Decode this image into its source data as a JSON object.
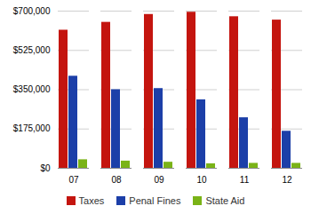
{
  "chart_data": {
    "type": "bar",
    "categories": [
      "07",
      "08",
      "09",
      "10",
      "11",
      "12"
    ],
    "series": [
      {
        "name": "Taxes",
        "color": "#c4150f",
        "values": [
          615000,
          650000,
          685000,
          695000,
          675000,
          660000
        ]
      },
      {
        "name": "Penal Fines",
        "color": "#1c3fa8",
        "values": [
          410000,
          350000,
          355000,
          305000,
          225000,
          165000
        ]
      },
      {
        "name": "State Aid",
        "color": "#7ab317",
        "values": [
          38000,
          32000,
          27000,
          20000,
          22000,
          22000
        ]
      }
    ],
    "ylim": [
      0,
      700000
    ],
    "yticks": [
      {
        "value": 0,
        "label": "$0"
      },
      {
        "value": 175000,
        "label": "$175,000"
      },
      {
        "value": 350000,
        "label": "$350,000"
      },
      {
        "value": 525000,
        "label": "$525,000"
      },
      {
        "value": 700000,
        "label": "$700,000"
      }
    ],
    "grid": true,
    "legend": "bottom"
  }
}
